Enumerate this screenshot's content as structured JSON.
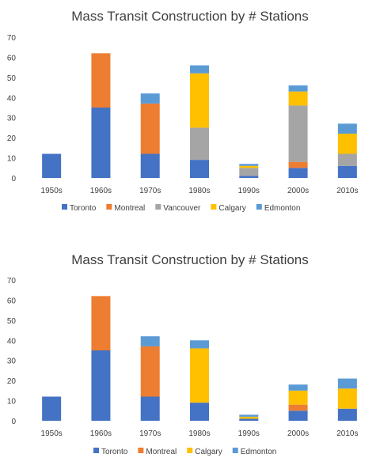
{
  "chart_data": [
    {
      "type": "bar",
      "stacked": true,
      "title": "Mass Transit Construction by # Stations",
      "xlabel": "",
      "ylabel": "",
      "ylim": [
        0,
        70
      ],
      "yticks": [
        0,
        10,
        20,
        30,
        40,
        50,
        60,
        70
      ],
      "grid": false,
      "legend": "bottom",
      "categories": [
        "1950s",
        "1960s",
        "1970s",
        "1980s",
        "1990s",
        "2000s",
        "2010s"
      ],
      "series": [
        {
          "name": "Toronto",
          "color": "#4472C4",
          "values": [
            12,
            35,
            12,
            9,
            1,
            5,
            6
          ]
        },
        {
          "name": "Montreal",
          "color": "#ED7D31",
          "values": [
            0,
            27,
            25,
            0,
            0,
            3,
            0
          ]
        },
        {
          "name": "Vancouver",
          "color": "#A5A5A5",
          "values": [
            0,
            0,
            0,
            16,
            4,
            28,
            6
          ]
        },
        {
          "name": "Calgary",
          "color": "#FFC000",
          "values": [
            0,
            0,
            0,
            27,
            1,
            7,
            10
          ]
        },
        {
          "name": "Edmonton",
          "color": "#5B9BD5",
          "values": [
            0,
            0,
            5,
            4,
            1,
            3,
            5
          ]
        }
      ]
    },
    {
      "type": "bar",
      "stacked": true,
      "title": "Mass Transit Construction by # Stations",
      "xlabel": "",
      "ylabel": "",
      "ylim": [
        0,
        70
      ],
      "yticks": [
        0,
        10,
        20,
        30,
        40,
        50,
        60,
        70
      ],
      "grid": false,
      "legend": "bottom",
      "categories": [
        "1950s",
        "1960s",
        "1970s",
        "1980s",
        "1990s",
        "2000s",
        "2010s"
      ],
      "series": [
        {
          "name": "Toronto",
          "color": "#4472C4",
          "values": [
            12,
            35,
            12,
            9,
            1,
            5,
            6
          ]
        },
        {
          "name": "Montreal",
          "color": "#ED7D31",
          "values": [
            0,
            27,
            25,
            0,
            0,
            3,
            0
          ]
        },
        {
          "name": "Calgary",
          "color": "#FFC000",
          "values": [
            0,
            0,
            0,
            27,
            1,
            7,
            10
          ]
        },
        {
          "name": "Edmonton",
          "color": "#5B9BD5",
          "values": [
            0,
            0,
            5,
            4,
            1,
            3,
            5
          ]
        }
      ]
    }
  ]
}
